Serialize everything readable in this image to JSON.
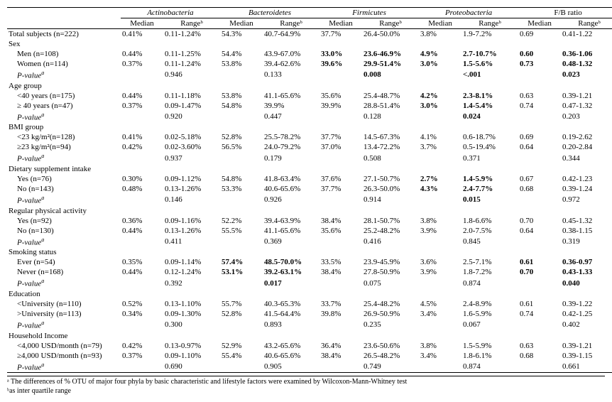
{
  "headers": {
    "phyla": [
      "Actinobacteria",
      "Bacteroidetes",
      "Firmicutes",
      "Proteobacteria",
      "F/B ratio"
    ],
    "sub": [
      "Median",
      "Rangeᵇ"
    ]
  },
  "rows": [
    {
      "type": "data",
      "label": "Total subjects (n=222)",
      "cells": [
        {
          "m": "0.41%",
          "r": "0.11-1.24%"
        },
        {
          "m": "54.3%",
          "r": "40.7-64.9%"
        },
        {
          "m": "37.7%",
          "r": "26.4-50.0%"
        },
        {
          "m": "3.8%",
          "r": "1.9-7.2%"
        },
        {
          "m": "0.69",
          "r": "0.41-1.22"
        }
      ]
    },
    {
      "type": "group",
      "label": "Sex"
    },
    {
      "type": "data",
      "label": "Men (n=108)",
      "indent": true,
      "cells": [
        {
          "m": "0.44%",
          "r": "0.11-1.25%"
        },
        {
          "m": "54.4%",
          "r": "43.9-67.0%"
        },
        {
          "m": "33.0%",
          "mb": true,
          "r": "23.6-46.9%",
          "rb": true
        },
        {
          "m": "4.9%",
          "mb": true,
          "r": "2.7-10.7%",
          "rb": true
        },
        {
          "m": "0.60",
          "mb": true,
          "r": "0.36-1.06",
          "rb": true
        }
      ]
    },
    {
      "type": "data",
      "label": "Women (n=114)",
      "indent": true,
      "cells": [
        {
          "m": "0.37%",
          "r": "0.11-1.24%"
        },
        {
          "m": "53.8%",
          "r": "39.4-62.6%"
        },
        {
          "m": "39.6%",
          "mb": true,
          "r": "29.9-51.4%",
          "rb": true
        },
        {
          "m": "3.0%",
          "mb": true,
          "r": "1.5-5.6%",
          "rb": true
        },
        {
          "m": "0.73",
          "mb": true,
          "r": "0.48-1.32",
          "rb": true
        }
      ]
    },
    {
      "type": "pval",
      "label": "P-valueᵃ",
      "cells": [
        {
          "r": "0.946"
        },
        {
          "r": "0.133"
        },
        {
          "r": "0.008",
          "rb": true
        },
        {
          "r": "<.001",
          "rb": true
        },
        {
          "r": "0.023",
          "rb": true
        }
      ]
    },
    {
      "type": "group",
      "label": "Age group"
    },
    {
      "type": "data",
      "label": "<40 years    (n=175)",
      "indent": true,
      "cells": [
        {
          "m": "0.44%",
          "r": "0.11-1.18%"
        },
        {
          "m": "53.8%",
          "r": "41.1-65.6%"
        },
        {
          "m": "35.6%",
          "r": "25.4-48.7%"
        },
        {
          "m": "4.2%",
          "mb": true,
          "r": "2.3-8.1%",
          "rb": true
        },
        {
          "m": "0.63",
          "r": "0.39-1.21"
        }
      ]
    },
    {
      "type": "data",
      "label": "≥ 40 years (n=47)",
      "indent": true,
      "cells": [
        {
          "m": "0.37%",
          "r": "0.09-1.47%"
        },
        {
          "m": "54.8%",
          "r": "39.9%"
        },
        {
          "m": "39.9%",
          "r": "28.8-51.4%"
        },
        {
          "m": "3.0%",
          "mb": true,
          "r": "1.4-5.4%",
          "rb": true
        },
        {
          "m": "0.74",
          "r": "0.47-1.32"
        }
      ]
    },
    {
      "type": "pval",
      "label": "P-valueᵃ",
      "cells": [
        {
          "r": "0.920"
        },
        {
          "r": "0.447"
        },
        {
          "r": "0.128"
        },
        {
          "r": "0.024",
          "rb": true
        },
        {
          "r": "0.203"
        }
      ]
    },
    {
      "type": "group",
      "label": "BMI group"
    },
    {
      "type": "data",
      "label": "<23 kg/m²(n=128)",
      "indent": true,
      "cells": [
        {
          "m": "0.41%",
          "r": "0.02-5.18%"
        },
        {
          "m": "52.8%",
          "r": "25.5-78.2%"
        },
        {
          "m": "37.7%",
          "r": "14.5-67.3%"
        },
        {
          "m": "4.1%",
          "r": "0.6-18.7%"
        },
        {
          "m": "0.69",
          "r": "0.19-2.62"
        }
      ]
    },
    {
      "type": "data",
      "label": "≥23 kg/m²(n=94)",
      "indent": true,
      "cells": [
        {
          "m": "0.42%",
          "r": "0.02-3.60%"
        },
        {
          "m": "56.5%",
          "r": "24.0-79.2%"
        },
        {
          "m": "37.0%",
          "r": "13.4-72.2%"
        },
        {
          "m": "3.7%",
          "r": "0.5-19.4%"
        },
        {
          "m": "0.64",
          "r": "0.20-2.84"
        }
      ]
    },
    {
      "type": "pval",
      "label": "P-valueᵃ",
      "cells": [
        {
          "r": "0.937"
        },
        {
          "r": "0.179"
        },
        {
          "r": "0.508"
        },
        {
          "r": "0.371"
        },
        {
          "r": "0.344"
        }
      ]
    },
    {
      "type": "group",
      "label": "Dietary supplement intake"
    },
    {
      "type": "data",
      "label": "Yes (n=76)",
      "indent": true,
      "cells": [
        {
          "m": "0.30%",
          "r": "0.09-1.12%"
        },
        {
          "m": "54.8%",
          "r": "41.8-63.4%"
        },
        {
          "m": "37.6%",
          "r": "27.1-50.7%"
        },
        {
          "m": "2.7%",
          "mb": true,
          "r": "1.4-5.9%",
          "rb": true
        },
        {
          "m": "0.67",
          "r": "0.42-1.23"
        }
      ]
    },
    {
      "type": "data",
      "label": "No (n=143)",
      "indent": true,
      "cells": [
        {
          "m": "0.48%",
          "r": "0.13-1.26%"
        },
        {
          "m": "53.3%",
          "r": "40.6-65.6%"
        },
        {
          "m": "37.7%",
          "r": "26.3-50.0%"
        },
        {
          "m": "4.3%",
          "mb": true,
          "r": "2.4-7.7%",
          "rb": true
        },
        {
          "m": "0.68",
          "r": "0.39-1.24"
        }
      ]
    },
    {
      "type": "pval",
      "label": "P-valueᵃ",
      "cells": [
        {
          "r": "0.146"
        },
        {
          "r": "0.926"
        },
        {
          "r": "0.914"
        },
        {
          "r": "0.015",
          "rb": true
        },
        {
          "r": "0.972"
        }
      ]
    },
    {
      "type": "group",
      "label": "Regular physical activity"
    },
    {
      "type": "data",
      "label": "Yes (n=92)",
      "indent": true,
      "cells": [
        {
          "m": "0.36%",
          "r": "0.09-1.16%"
        },
        {
          "m": "52.2%",
          "r": "39.4-63.9%"
        },
        {
          "m": "38.4%",
          "r": "28.1-50.7%"
        },
        {
          "m": "3.8%",
          "r": "1.8-6.6%"
        },
        {
          "m": "0.70",
          "r": "0.45-1.32"
        }
      ]
    },
    {
      "type": "data",
      "label": "No (n=130)",
      "indent": true,
      "cells": [
        {
          "m": "0.44%",
          "r": "0.13-1.26%"
        },
        {
          "m": "55.5%",
          "r": "41.1-65.6%"
        },
        {
          "m": "35.6%",
          "r": "25.2-48.2%"
        },
        {
          "m": "3.9%",
          "r": "2.0-7.5%"
        },
        {
          "m": "0.64",
          "r": "0.38-1.15"
        }
      ]
    },
    {
      "type": "pval",
      "label": "P-valueᵃ",
      "cells": [
        {
          "r": "0.411"
        },
        {
          "r": "0.369"
        },
        {
          "r": "0.416"
        },
        {
          "r": "0.845"
        },
        {
          "r": "0.319"
        }
      ]
    },
    {
      "type": "group",
      "label": "Smoking status"
    },
    {
      "type": "data",
      "label": "Ever (n=54)",
      "indent": true,
      "cells": [
        {
          "m": "0.35%",
          "r": "0.09-1.14%"
        },
        {
          "m": "57.4%",
          "mb": true,
          "r": "48.5-70.0%",
          "rb": true
        },
        {
          "m": "33.5%",
          "r": "23.9-45.9%"
        },
        {
          "m": "3.6%",
          "r": "2.5-7.1%"
        },
        {
          "m": "0.61",
          "mb": true,
          "r": "0.36-0.97",
          "rb": true
        }
      ]
    },
    {
      "type": "data",
      "label": "Never (n=168)",
      "indent": true,
      "cells": [
        {
          "m": "0.44%",
          "r": "0.12-1.24%"
        },
        {
          "m": "53.1%",
          "mb": true,
          "r": "39.2-63.1%",
          "rb": true
        },
        {
          "m": "38.4%",
          "r": "27.8-50.9%"
        },
        {
          "m": "3.9%",
          "r": "1.8-7.2%"
        },
        {
          "m": "0.70",
          "mb": true,
          "r": "0.43-1.33",
          "rb": true
        }
      ]
    },
    {
      "type": "pval",
      "label": "P-valueᵃ",
      "cells": [
        {
          "r": "0.392"
        },
        {
          "r": "0.017",
          "rb": true
        },
        {
          "r": "0.075"
        },
        {
          "r": "0.874"
        },
        {
          "r": "0.040",
          "rb": true
        }
      ]
    },
    {
      "type": "group",
      "label": "Education"
    },
    {
      "type": "data",
      "label": "<University (n=110)",
      "indent": true,
      "cells": [
        {
          "m": "0.52%",
          "r": "0.13-1.10%"
        },
        {
          "m": "55.7%",
          "r": "40.3-65.3%"
        },
        {
          "m": "33.7%",
          "r": "25.4-48.2%"
        },
        {
          "m": "4.5%",
          "r": "2.4-8.9%"
        },
        {
          "m": "0.61",
          "r": "0.39-1.22"
        }
      ]
    },
    {
      "type": "data",
      "label": ">University (n=113)",
      "indent": true,
      "cells": [
        {
          "m": "0.34%",
          "r": "0.09-1.30%"
        },
        {
          "m": "52.8%",
          "r": "41.5-64.4%"
        },
        {
          "m": "39.8%",
          "r": "26.9-50.9%"
        },
        {
          "m": "3.4%",
          "r": "1.6-5.9%"
        },
        {
          "m": "0.74",
          "r": "0.42-1.25"
        }
      ]
    },
    {
      "type": "pval",
      "label": "P-valueᵃ",
      "cells": [
        {
          "r": "0.300"
        },
        {
          "r": "0.893"
        },
        {
          "r": "0.235"
        },
        {
          "r": "0.067"
        },
        {
          "r": "0.402"
        }
      ]
    },
    {
      "type": "group",
      "label": "Household Income"
    },
    {
      "type": "data",
      "label": "<4,000 USD/month   (n=79)",
      "indent": true,
      "cells": [
        {
          "m": "0.42%",
          "r": "0.13-0.97%"
        },
        {
          "m": "52.9%",
          "r": "43.2-65.6%"
        },
        {
          "m": "36.4%",
          "r": "23.6-50.6%"
        },
        {
          "m": "3.8%",
          "r": "1.5-5.9%"
        },
        {
          "m": "0.63",
          "r": "0.39-1.21"
        }
      ]
    },
    {
      "type": "data",
      "label": "≥4,000 USD/month   (n=93)",
      "indent": true,
      "cells": [
        {
          "m": "0.37%",
          "r": "0.09-1.10%"
        },
        {
          "m": "55.4%",
          "r": "40.6-65.6%"
        },
        {
          "m": "38.4%",
          "r": "26.5-48.2%"
        },
        {
          "m": "3.4%",
          "r": "1.8-6.1%"
        },
        {
          "m": "0.68",
          "r": "0.39-1.15"
        }
      ]
    },
    {
      "type": "pval",
      "label": "P-valueᵃ",
      "cells": [
        {
          "r": "0.690"
        },
        {
          "r": "0.905"
        },
        {
          "r": "0.749"
        },
        {
          "r": "0.874"
        },
        {
          "r": "0.661"
        }
      ]
    }
  ],
  "footnotes": {
    "a": "ᵃ The differences of % OTU of major four phyla by basic characteristic and lifestyle factors were examined by Wilcoxon-Mann-Whitney test",
    "b": "ᵇas inter quartile range"
  }
}
